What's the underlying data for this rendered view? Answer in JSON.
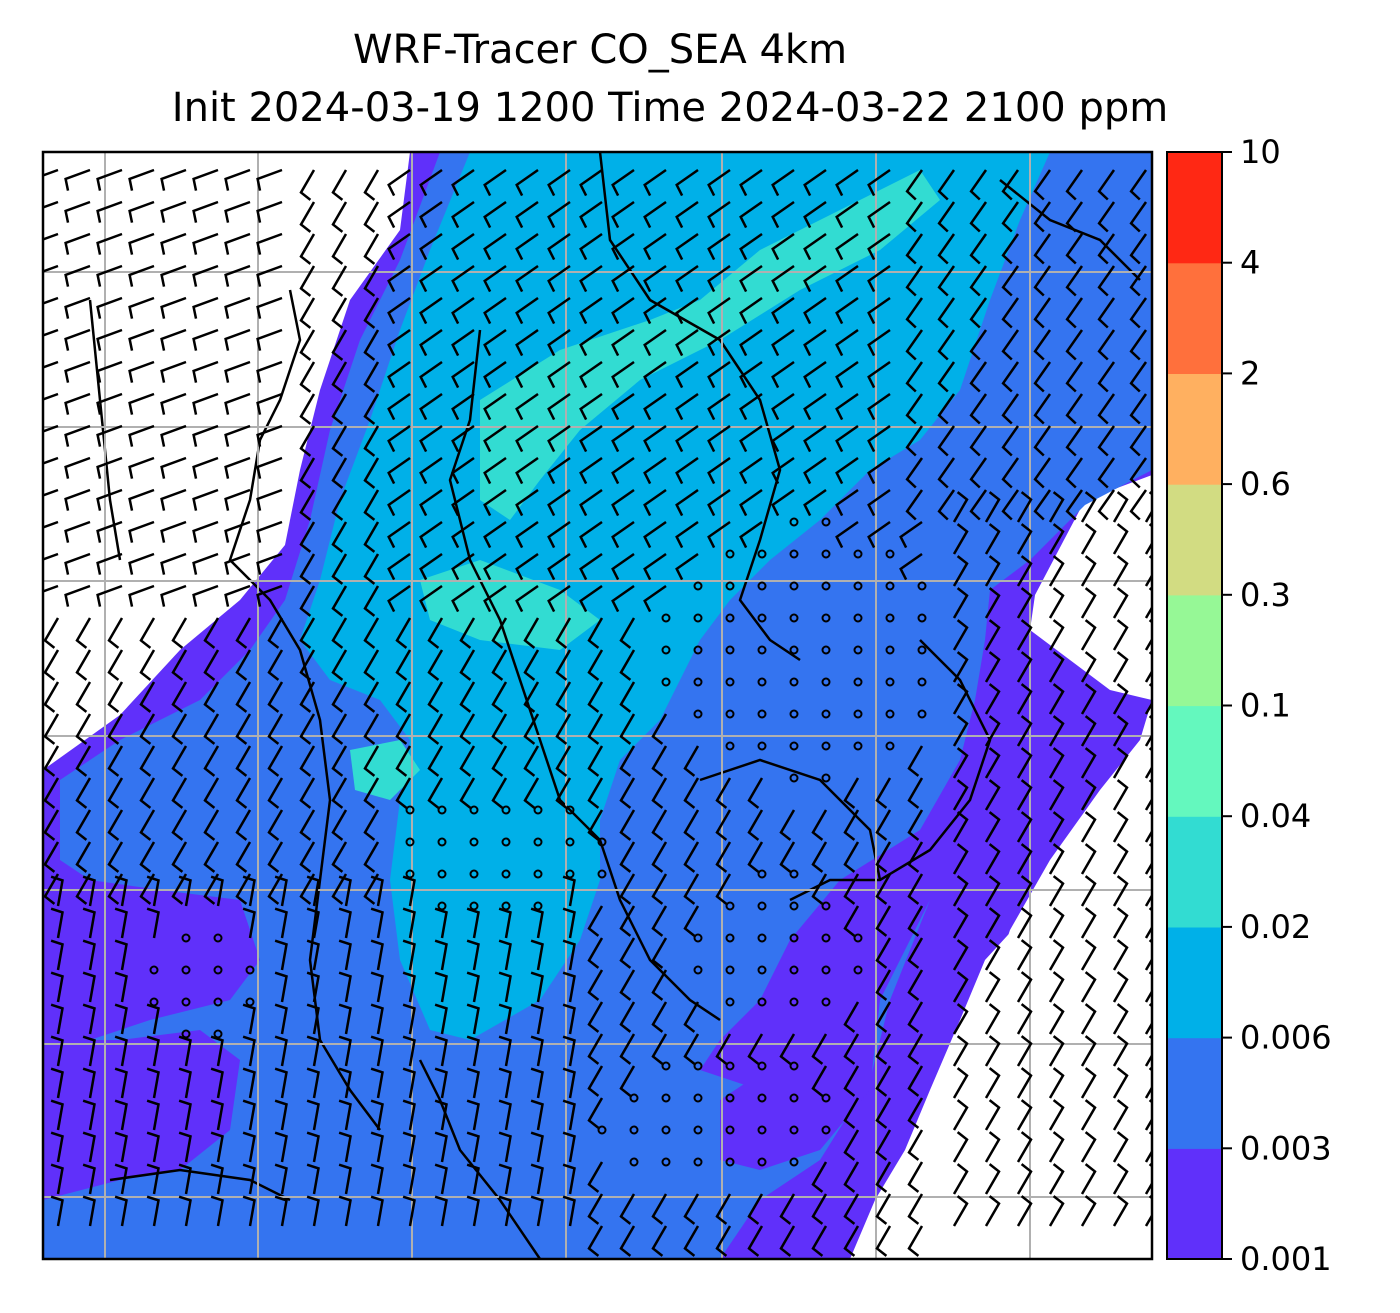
{
  "title": {
    "line1": "WRF-Tracer CO_SEA 4km",
    "line2": "Init 2024-03-19 1200 Time 2024-03-22 2100 ppm"
  },
  "colorbar": {
    "levels": [
      "0.001",
      "0.003",
      "0.006",
      "0.02",
      "0.04",
      "0.1",
      "0.3",
      "0.6",
      "2",
      "4",
      "10"
    ],
    "colors": [
      "#6030fa",
      "#3474f0",
      "#00b0e8",
      "#32dcd2",
      "#64f8be",
      "#96f896",
      "#d2dc82",
      "#ffb060",
      "#ff703c",
      "#ff2814"
    ]
  },
  "map": {
    "contour_colors": {
      "background": "#ffffff",
      "very_low": "#6030fa",
      "low": "#3474f0",
      "mid": "#00b0e8",
      "higher": "#32dcd2"
    },
    "wind_barbs": "black",
    "gridlines": "gray"
  }
}
